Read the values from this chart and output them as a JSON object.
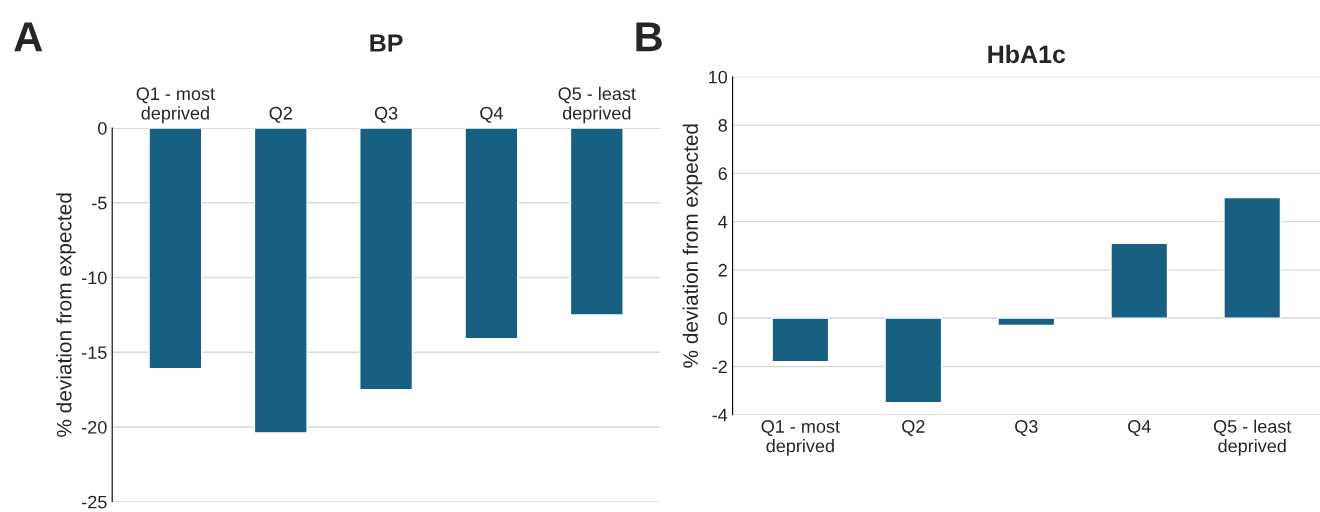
{
  "chart_data": [
    {
      "type": "bar",
      "title": "BP",
      "ylabel": "% deviation from expected",
      "annotations": [
        "A"
      ],
      "categories": [
        "Q1 - most\ndeprived",
        "Q2",
        "Q3",
        "Q4",
        "Q5 - least\ndeprived"
      ],
      "values": [
        -16.1,
        -20.4,
        -17.5,
        -14.1,
        -12.5
      ],
      "color": "#186082",
      "ylim": [
        -25,
        0
      ],
      "yticks": [
        -25,
        -20,
        -15,
        -10,
        -5,
        0
      ],
      "grid": "y"
    },
    {
      "type": "bar",
      "title": "HbA1c",
      "ylabel": "% deviation from expected",
      "annotations": [
        "B"
      ],
      "categories": [
        "Q1 - most\ndeprived",
        "Q2",
        "Q3",
        "Q4",
        "Q5 - least\ndeprived"
      ],
      "values": [
        -1.8,
        -3.5,
        -0.3,
        3.1,
        5.0
      ],
      "color": "#186082",
      "ylim": [
        -4,
        10
      ],
      "yticks": [
        -4,
        -2,
        0,
        2,
        4,
        6,
        8,
        10
      ],
      "grid": "y"
    }
  ]
}
